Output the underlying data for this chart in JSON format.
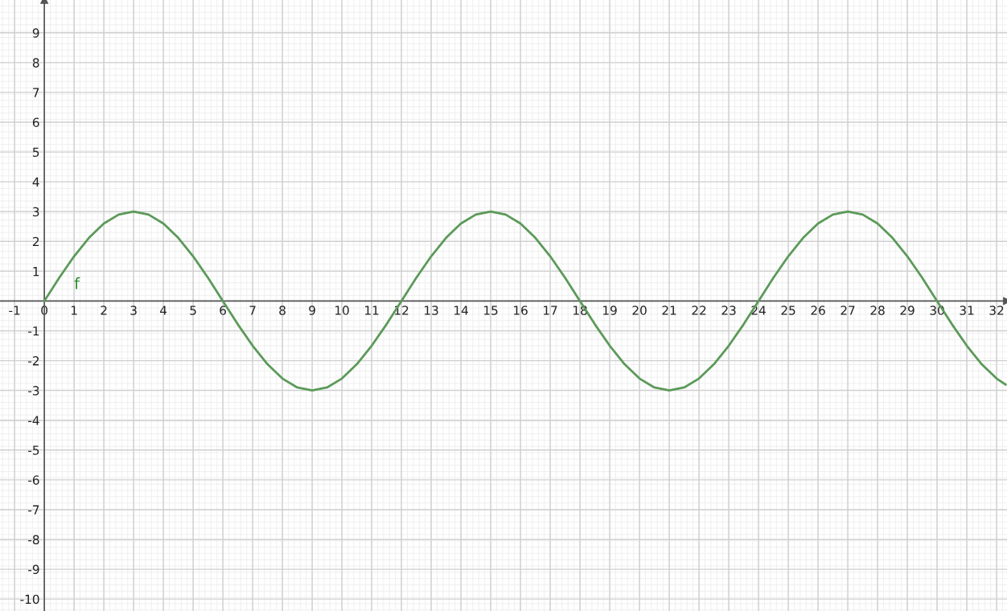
{
  "chart_data": {
    "type": "line",
    "xlim": [
      -1.49,
      32.35
    ],
    "ylim": [
      -10.4,
      10.1
    ],
    "xticks": [
      -1,
      0,
      1,
      2,
      3,
      4,
      5,
      6,
      7,
      8,
      9,
      10,
      11,
      12,
      13,
      14,
      15,
      16,
      17,
      18,
      19,
      20,
      21,
      22,
      23,
      24,
      25,
      26,
      27,
      28,
      29,
      30,
      31,
      32
    ],
    "yticks": [
      -10,
      -9,
      -8,
      -7,
      -6,
      -5,
      -4,
      -3,
      -2,
      -1,
      1,
      2,
      3,
      4,
      5,
      6,
      7,
      8,
      9
    ],
    "grid": true,
    "marker": "none",
    "line_style": "solid",
    "series": [
      {
        "name": "f",
        "color": "#5b9a59",
        "x": [
          0,
          0.5,
          1,
          1.5,
          2,
          2.5,
          3,
          3.5,
          4,
          4.5,
          5,
          5.5,
          6,
          6.5,
          7,
          7.5,
          8,
          8.5,
          9,
          9.5,
          10,
          10.5,
          11,
          11.5,
          12,
          12.5,
          13,
          13.5,
          14,
          14.5,
          15,
          15.5,
          16,
          16.5,
          17,
          17.5,
          18,
          18.5,
          19,
          19.5,
          20,
          20.5,
          21,
          21.5,
          22,
          22.5,
          23,
          23.5,
          24,
          24.5,
          25,
          25.5,
          26,
          26.5,
          27,
          27.5,
          28,
          28.5,
          29,
          29.5,
          30,
          30.5,
          31,
          31.5,
          32,
          32.3
        ],
        "values": [
          0,
          0.78,
          1.5,
          2.12,
          2.6,
          2.9,
          3,
          2.9,
          2.6,
          2.12,
          1.5,
          0.78,
          0,
          -0.78,
          -1.5,
          -2.12,
          -2.6,
          -2.9,
          -3,
          -2.9,
          -2.6,
          -2.12,
          -1.5,
          -0.78,
          0,
          0.78,
          1.5,
          2.12,
          2.6,
          2.9,
          3,
          2.9,
          2.6,
          2.12,
          1.5,
          0.78,
          0,
          -0.78,
          -1.5,
          -2.12,
          -2.6,
          -2.9,
          -3,
          -2.9,
          -2.6,
          -2.12,
          -1.5,
          -0.78,
          0,
          0.78,
          1.5,
          2.12,
          2.6,
          2.9,
          3,
          2.9,
          2.6,
          2.12,
          1.5,
          0.78,
          0,
          -0.78,
          -1.5,
          -2.12,
          -2.6,
          -2.8
        ]
      }
    ]
  }
}
